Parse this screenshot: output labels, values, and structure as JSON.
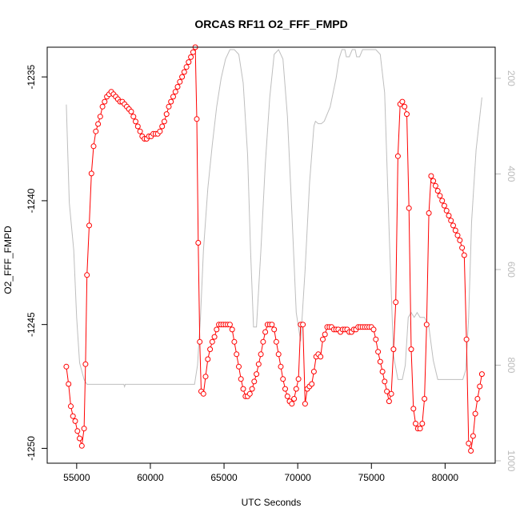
{
  "chart_data": {
    "type": "line",
    "title": "ORCAS RF11 O2_FFF_FMPD",
    "xlabel": "UTC Seconds",
    "ylabel": "O2_FFF_FMPD",
    "xlim": [
      53000,
      83400
    ],
    "ylim": [
      -1250.6,
      -1233.8
    ],
    "x_ticks": [
      55000,
      60000,
      65000,
      70000,
      75000,
      80000
    ],
    "x_tick_labels": [
      "55000",
      "60000",
      "65000",
      "70000",
      "75000",
      "80000"
    ],
    "y_ticks": [
      -1250,
      -1245,
      -1240,
      -1235
    ],
    "y_tick_labels": [
      "-1250",
      "-1245",
      "-1240",
      "-1235"
    ],
    "y2_lim": [
      1005,
      135
    ],
    "y2_ticks": [
      200,
      400,
      600,
      800,
      1000
    ],
    "y2_tick_labels": [
      "200",
      "400",
      "600",
      "800",
      "1000"
    ],
    "colors": {
      "primary": "#ff0000",
      "secondary": "#bebebe"
    },
    "series": [
      {
        "style": "points-and-line",
        "color": "#ff0000",
        "x": [
          54300,
          54450,
          54600,
          54750,
          54900,
          55050,
          55200,
          55350,
          55500,
          55600,
          55700,
          55850,
          56000,
          56150,
          56300,
          56450,
          56600,
          56750,
          56900,
          57050,
          57200,
          57350,
          57500,
          57650,
          57800,
          57950,
          58100,
          58250,
          58400,
          58550,
          58700,
          58850,
          59000,
          59150,
          59300,
          59450,
          59600,
          59750,
          59900,
          60050,
          60200,
          60350,
          60500,
          60650,
          60800,
          60950,
          61100,
          61250,
          61400,
          61550,
          61700,
          61850,
          62000,
          62150,
          62300,
          62450,
          62600,
          62750,
          62900,
          63050,
          63150,
          63250,
          63350,
          63450,
          63600,
          63750,
          63900,
          64050,
          64200,
          64350,
          64500,
          64650,
          64800,
          64950,
          65100,
          65250,
          65400,
          65550,
          65700,
          65850,
          66000,
          66150,
          66300,
          66450,
          66600,
          66750,
          66900,
          67050,
          67200,
          67350,
          67500,
          67650,
          67800,
          67950,
          68100,
          68250,
          68400,
          68550,
          68700,
          68850,
          69000,
          69150,
          69300,
          69450,
          69600,
          69750,
          69900,
          70050,
          70200,
          70350,
          70500,
          70650,
          70800,
          70950,
          71100,
          71250,
          71400,
          71550,
          71700,
          71850,
          72000,
          72150,
          72300,
          72450,
          72600,
          72750,
          72900,
          73050,
          73200,
          73350,
          73500,
          73650,
          73800,
          73950,
          74100,
          74250,
          74400,
          74550,
          74700,
          74850,
          75000,
          75150,
          75300,
          75450,
          75600,
          75750,
          75900,
          76050,
          76200,
          76350,
          76500,
          76650,
          76800,
          76950,
          77100,
          77250,
          77400,
          77550,
          77700,
          77850,
          78000,
          78150,
          78300,
          78450,
          78600,
          78750,
          78900,
          79050,
          79200,
          79350,
          79500,
          79650,
          79800,
          79950,
          80100,
          80250,
          80400,
          80550,
          80700,
          80850,
          81000,
          81150,
          81300,
          81450,
          81600,
          81750,
          81900,
          82050,
          82200,
          82350,
          82500
        ],
        "y": [
          -1246.7,
          -1247.4,
          -1248.3,
          -1248.7,
          -1248.9,
          -1249.3,
          -1249.6,
          -1249.9,
          -1249.2,
          -1246.6,
          -1243.0,
          -1241.0,
          -1238.9,
          -1237.8,
          -1237.2,
          -1236.9,
          -1236.6,
          -1236.2,
          -1236.0,
          -1235.8,
          -1235.7,
          -1235.6,
          -1235.7,
          -1235.8,
          -1235.9,
          -1236.0,
          -1236.0,
          -1236.1,
          -1236.2,
          -1236.3,
          -1236.4,
          -1236.6,
          -1236.8,
          -1237.0,
          -1237.2,
          -1237.4,
          -1237.5,
          -1237.5,
          -1237.4,
          -1237.4,
          -1237.3,
          -1237.3,
          -1237.3,
          -1237.2,
          -1237.0,
          -1236.8,
          -1236.5,
          -1236.2,
          -1236.0,
          -1235.8,
          -1235.6,
          -1235.4,
          -1235.2,
          -1235.0,
          -1234.8,
          -1234.6,
          -1234.4,
          -1234.2,
          -1234.0,
          -1233.8,
          -1236.7,
          -1241.7,
          -1245.7,
          -1247.7,
          -1247.8,
          -1247.1,
          -1246.4,
          -1246.0,
          -1245.7,
          -1245.5,
          -1245.2,
          -1245.0,
          -1245.0,
          -1245.0,
          -1245.0,
          -1245.0,
          -1245.0,
          -1245.2,
          -1245.7,
          -1246.2,
          -1246.7,
          -1247.2,
          -1247.6,
          -1247.9,
          -1247.9,
          -1247.8,
          -1247.6,
          -1247.3,
          -1247.0,
          -1246.6,
          -1246.2,
          -1245.7,
          -1245.3,
          -1245.0,
          -1245.0,
          -1245.0,
          -1245.2,
          -1245.7,
          -1246.2,
          -1246.7,
          -1247.2,
          -1247.6,
          -1247.9,
          -1248.1,
          -1248.2,
          -1248.0,
          -1247.6,
          -1247.2,
          -1245.0,
          -1245.0,
          -1248.2,
          -1247.6,
          -1247.5,
          -1247.4,
          -1246.9,
          -1246.3,
          -1246.2,
          -1246.3,
          -1245.6,
          -1245.4,
          -1245.1,
          -1245.1,
          -1245.1,
          -1245.2,
          -1245.2,
          -1245.2,
          -1245.3,
          -1245.2,
          -1245.2,
          -1245.2,
          -1245.3,
          -1245.3,
          -1245.2,
          -1245.2,
          -1245.1,
          -1245.1,
          -1245.1,
          -1245.1,
          -1245.1,
          -1245.1,
          -1245.1,
          -1245.2,
          -1245.6,
          -1246.1,
          -1246.5,
          -1246.9,
          -1247.3,
          -1247.7,
          -1248.1,
          -1247.8,
          -1246.0,
          -1244.1,
          -1238.2,
          -1236.1,
          -1236.0,
          -1236.2,
          -1236.5,
          -1240.3,
          -1246.0,
          -1248.4,
          -1249.0,
          -1249.2,
          -1249.2,
          -1249.0,
          -1248.0,
          -1245.0,
          -1240.5,
          -1239.0,
          -1239.2,
          -1239.4,
          -1239.6,
          -1239.8,
          -1240.0,
          -1240.2,
          -1240.4,
          -1240.6,
          -1240.8,
          -1241.0,
          -1241.2,
          -1241.4,
          -1241.6,
          -1241.9,
          -1242.2,
          -1245.6,
          -1249.8,
          -1250.1,
          -1249.5,
          -1248.6,
          -1248.0,
          -1247.5,
          -1247.0
        ]
      },
      {
        "style": "line",
        "color": "#bebebe",
        "axis": "right",
        "x": [
          54300,
          54500,
          54800,
          55000,
          55200,
          55500,
          55700,
          56000,
          58200,
          58250,
          58300,
          62000,
          63000,
          63200,
          63400,
          63600,
          63900,
          64200,
          64500,
          64800,
          65100,
          65400,
          65700,
          66000,
          66300,
          66600,
          66800,
          67000,
          67200,
          67500,
          67800,
          68100,
          68400,
          68700,
          69000,
          69300,
          69600,
          69900,
          70200,
          70500,
          70800,
          71100,
          71200,
          71400,
          71600,
          71800,
          72200,
          72600,
          72800,
          73000,
          73200,
          73300,
          73500,
          73700,
          73900,
          74000,
          74200,
          74400,
          74700,
          75000,
          75300,
          75600,
          75900,
          76200,
          76500,
          76800,
          77100,
          77300,
          77500,
          77700,
          77900,
          78100,
          78300,
          78600,
          78900,
          79200,
          79500,
          80000,
          81000,
          81200,
          81400,
          81600,
          81800,
          82100,
          82500
        ],
        "y": [
          255,
          460,
          560,
          700,
          795,
          830,
          840,
          840,
          840,
          845,
          840,
          840,
          840,
          800,
          700,
          560,
          430,
          340,
          260,
          200,
          160,
          140,
          140,
          150,
          210,
          360,
          560,
          720,
          720,
          560,
          380,
          240,
          150,
          140,
          160,
          280,
          480,
          690,
          750,
          600,
          420,
          300,
          290,
          295,
          295,
          290,
          260,
          200,
          160,
          140,
          140,
          155,
          155,
          140,
          140,
          155,
          155,
          140,
          140,
          140,
          140,
          150,
          230,
          520,
          780,
          830,
          830,
          800,
          700,
          690,
          700,
          690,
          700,
          700,
          720,
          790,
          830,
          830,
          830,
          830,
          810,
          700,
          500,
          350,
          240
        ]
      }
    ]
  }
}
